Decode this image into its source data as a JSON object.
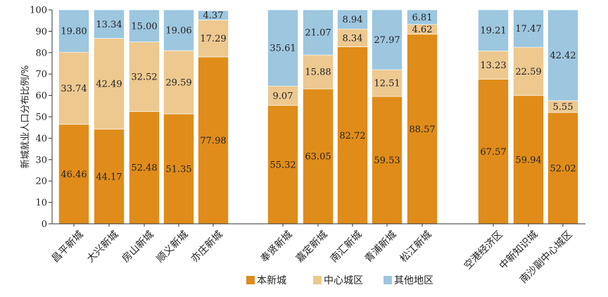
{
  "chart_data": {
    "type": "bar",
    "stacked": true,
    "ylabel": "新城就业人口分布比例/%",
    "ylim": [
      0,
      100
    ],
    "yticks": [
      0,
      10,
      20,
      30,
      40,
      50,
      60,
      70,
      80,
      90,
      100
    ],
    "groups": [
      [
        "昌平新城",
        "大兴新城",
        "房山新城",
        "顺义新城",
        "亦庄新城"
      ],
      [
        "奉贤新城",
        "嘉定新城",
        "南汇新城",
        "青浦新城",
        "松江新城"
      ],
      [
        "空港经济区",
        "中新知识城",
        "南沙副中心城区"
      ]
    ],
    "categories": [
      "昌平新城",
      "大兴新城",
      "房山新城",
      "顺义新城",
      "亦庄新城",
      "奉贤新城",
      "嘉定新城",
      "南汇新城",
      "青浦新城",
      "松江新城",
      "空港经济区",
      "中新知识城",
      "南沙副中心城区"
    ],
    "series": [
      {
        "name": "本新城",
        "color": "#E08C1A",
        "values": [
          46.46,
          44.17,
          52.48,
          51.35,
          77.98,
          55.32,
          63.05,
          82.72,
          59.53,
          88.57,
          67.57,
          59.94,
          52.02
        ]
      },
      {
        "name": "中心城区",
        "color": "#EDC88F",
        "values": [
          33.74,
          42.49,
          32.52,
          29.59,
          17.29,
          9.07,
          15.88,
          8.34,
          12.51,
          4.62,
          13.23,
          22.59,
          5.55
        ]
      },
      {
        "name": "其他地区",
        "color": "#9DC6DF",
        "values": [
          19.8,
          13.34,
          15.0,
          19.06,
          4.37,
          35.61,
          21.07,
          8.94,
          27.97,
          6.81,
          19.21,
          17.47,
          42.42
        ]
      }
    ],
    "value_labels": [
      [
        "46.46",
        "44.17",
        "52.48",
        "51.35",
        "77.98",
        "55.32",
        "63.05",
        "82.72",
        "59.53",
        "88.57",
        "67.57",
        "59.94",
        "52.02"
      ],
      [
        "33.74",
        "42.49",
        "32.52",
        "29.59",
        "17.29",
        "9.07",
        "15.88",
        "8.34",
        "12.51",
        "4.62",
        "13.23",
        "22.59",
        "5.55"
      ],
      [
        "19.80",
        "13.34",
        "15.00",
        "19.06",
        "4.37",
        "35.61",
        "21.07",
        "8.94",
        "27.97",
        "6.81",
        "19.21",
        "17.47",
        "42.42"
      ]
    ],
    "legend_position": "bottom",
    "grid": false
  }
}
